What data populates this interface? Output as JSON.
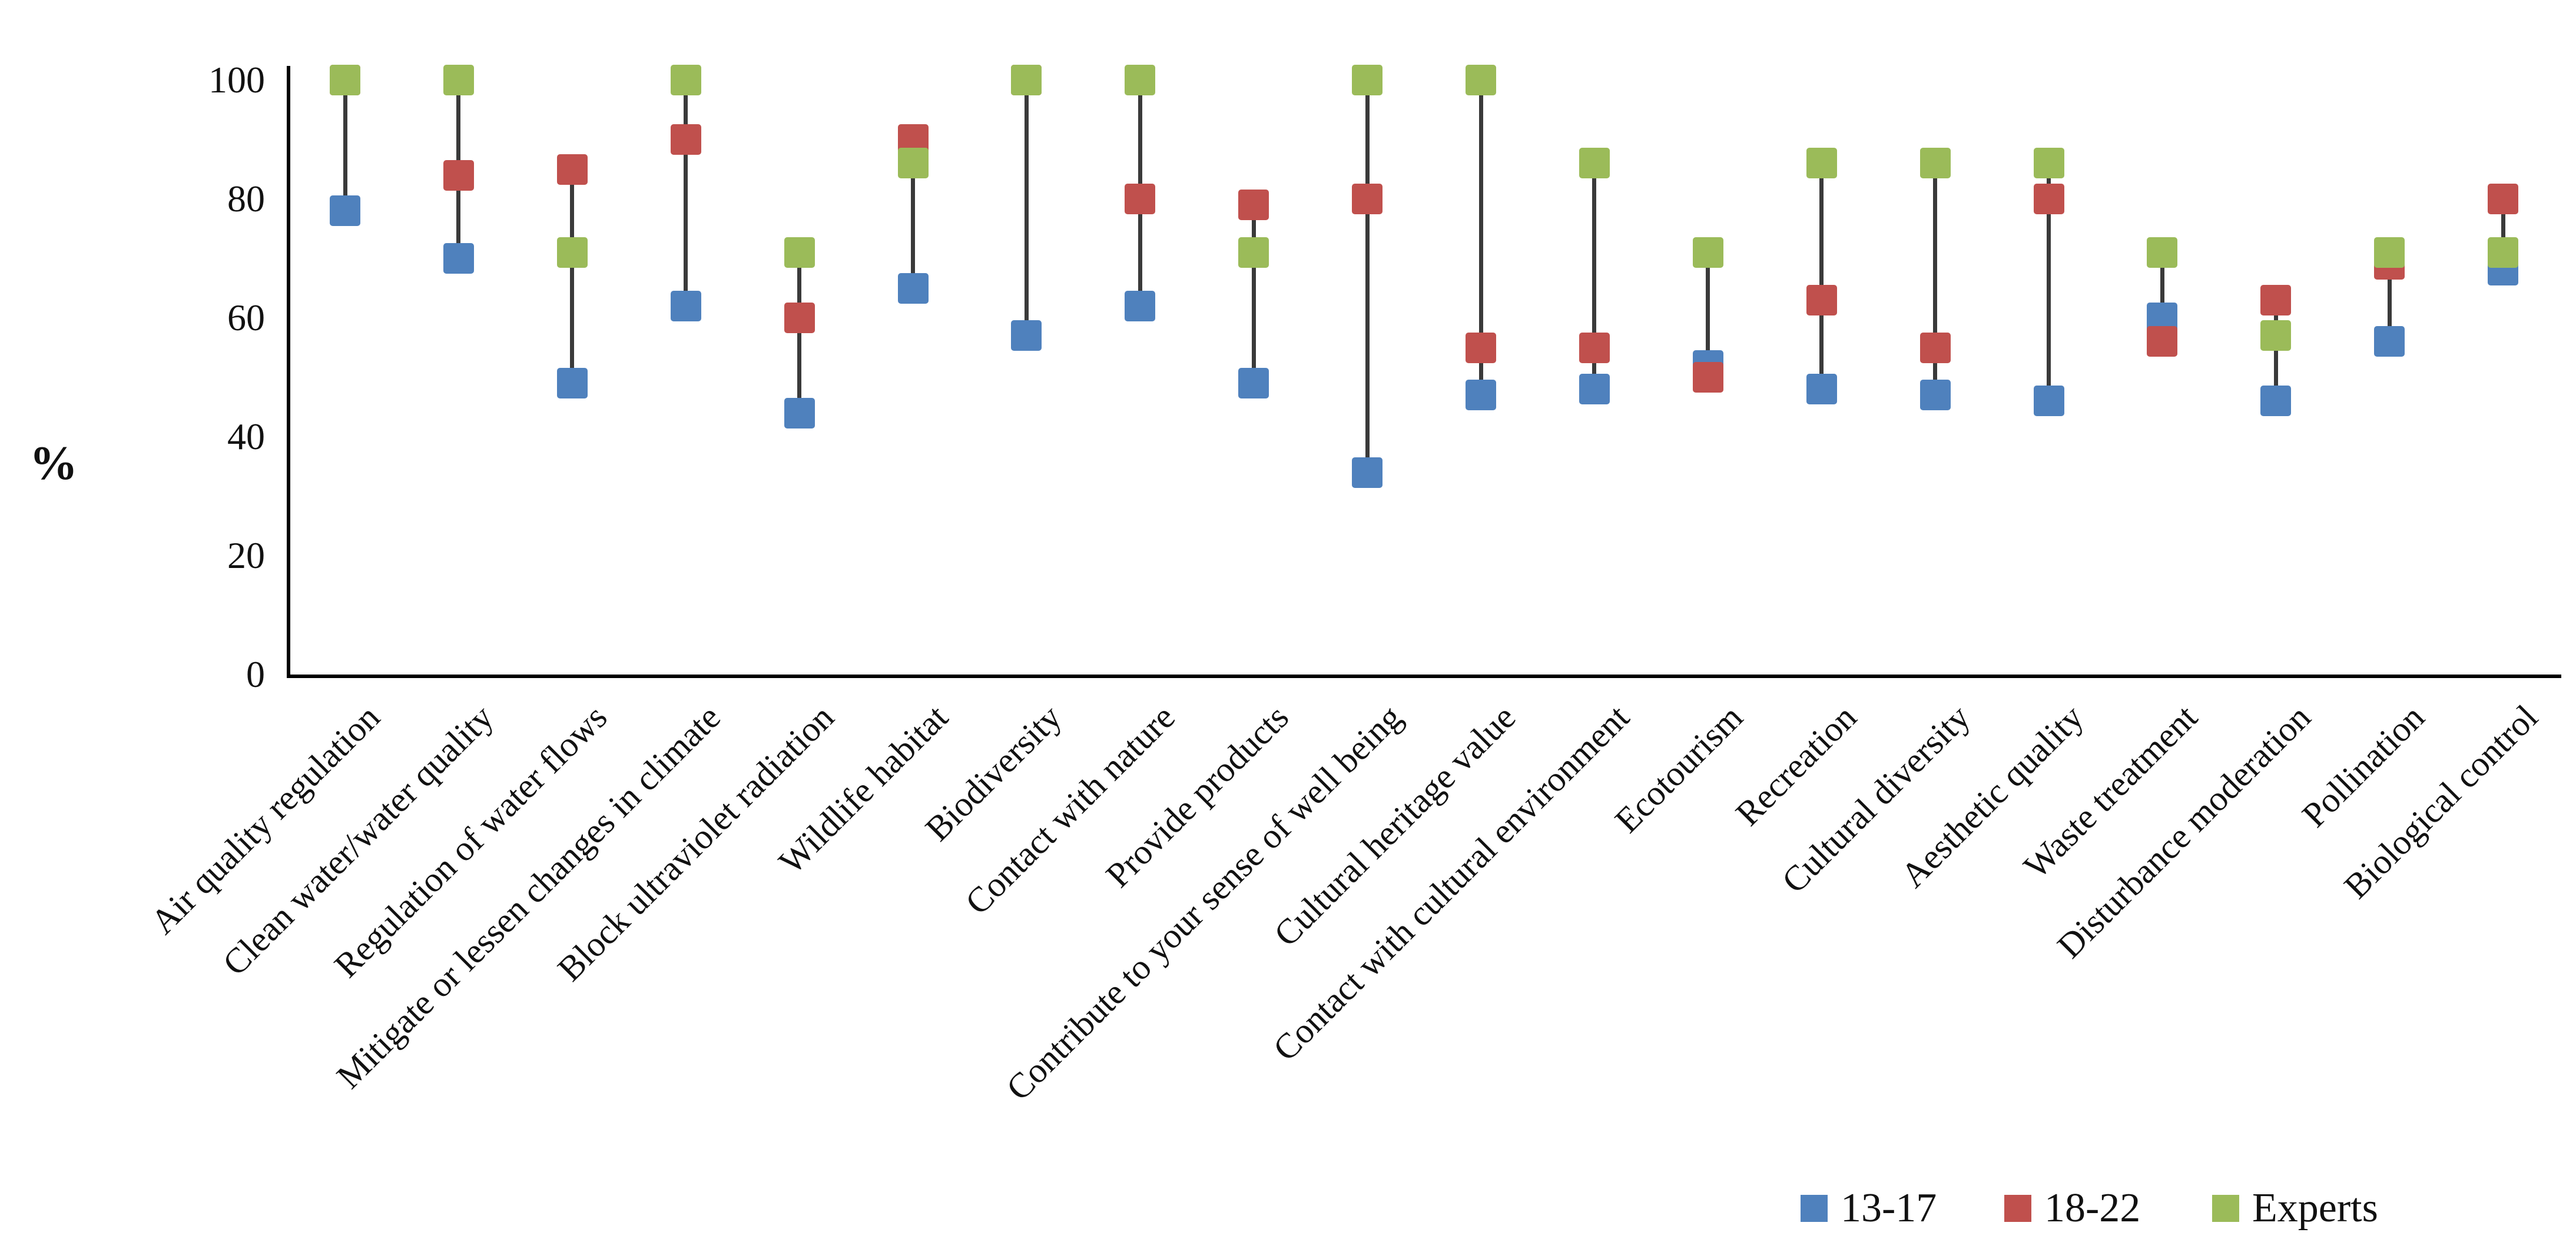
{
  "figure": {
    "ylabel": "%",
    "background": "#ffffff",
    "axis_color": "#000000",
    "connector_color": "#3a3a3a"
  },
  "chart_data": {
    "type": "scatter",
    "subtype": "dumbbell-dot-plot",
    "title": "",
    "xlabel": "",
    "ylabel": "%",
    "ylim": [
      0,
      100
    ],
    "yticks": [
      0,
      20,
      40,
      60,
      80,
      100
    ],
    "grid": false,
    "marker": "square",
    "connector": "vertical-line-min-to-max",
    "legend_position": "bottom-right",
    "categories": [
      "Air quality regulation",
      "Clean water/water quality",
      "Regulation of water flows",
      "Mitigate or lessen changes in climate",
      "Block ultraviolet radiation",
      "Wildlife habitat",
      "Biodiversity",
      "Contact with nature",
      "Provide products",
      "Contribute to your sense of well being",
      "Cultural heritage value",
      "Contact with cultural environment",
      "Ecotourism",
      "Recreation",
      "Cultural diversity",
      "Aesthetic quality",
      "Waste treatment",
      "Disturbance moderation",
      "Pollination",
      "Biological control"
    ],
    "series": [
      {
        "name": "13-17",
        "color": "#4F81BD",
        "values": [
          78,
          70,
          49,
          62,
          44,
          65,
          57,
          62,
          49,
          34,
          47,
          48,
          52,
          48,
          47,
          46,
          60,
          46,
          56,
          68
        ]
      },
      {
        "name": "18-22",
        "color": "#C0504D",
        "values": [
          100,
          84,
          85,
          90,
          60,
          90,
          100,
          80,
          79,
          80,
          55,
          55,
          50,
          63,
          55,
          80,
          56,
          63,
          69,
          80
        ]
      },
      {
        "name": "Experts",
        "color": "#9BBB59",
        "values": [
          100,
          100,
          71,
          100,
          71,
          86,
          100,
          100,
          71,
          100,
          100,
          86,
          71,
          86,
          86,
          86,
          71,
          57,
          71,
          71
        ]
      }
    ]
  }
}
